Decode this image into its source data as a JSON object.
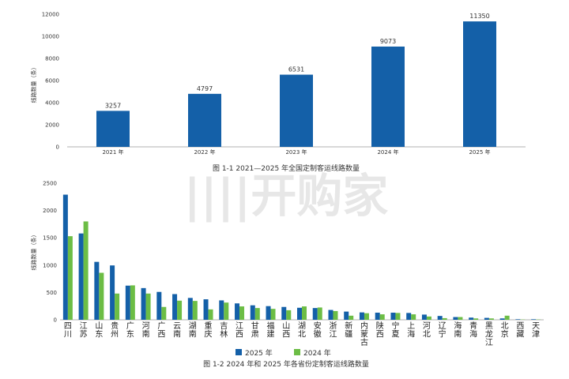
{
  "colors": {
    "series2025": "#1460a8",
    "series2024": "#6cbd45",
    "axis": "#999999"
  },
  "watermark": "||||开购家",
  "chart_data": [
    {
      "type": "bar",
      "caption": "图 1-1  2021—2025 年全国定制客运线路数量",
      "ylabel": "线路数量（条）",
      "ylim": [
        0,
        12000
      ],
      "yticks": [
        "0",
        "2000",
        "4000",
        "6000",
        "8000",
        "10000",
        "12000"
      ],
      "categories": [
        "2021 年",
        "2022 年",
        "2023 年",
        "2024 年",
        "2025 年"
      ],
      "values": [
        3257,
        4797,
        6531,
        9073,
        11350
      ],
      "value_labels": [
        "3257",
        "4797",
        "6531",
        "9073",
        "11350"
      ]
    },
    {
      "type": "bar",
      "caption": "图 1-2  2024 年和 2025 年各省份定制客运线路数量",
      "ylabel": "线路数量（条）",
      "ylim": [
        0,
        2500
      ],
      "yticks": [
        "0",
        "500",
        "1000",
        "1500",
        "2000",
        "2500"
      ],
      "legend": {
        "position": "bottom",
        "labels": [
          "2025 年",
          "2024 年"
        ]
      },
      "categories": [
        "四川",
        "江苏",
        "山东",
        "贵州",
        "广东",
        "河南",
        "广西",
        "云南",
        "湖南",
        "重庆",
        "吉林",
        "江西",
        "甘肃",
        "福建",
        "山西",
        "湖北",
        "安徽",
        "浙江",
        "新疆",
        "内蒙古",
        "陕西",
        "宁夏",
        "上海",
        "河北",
        "辽宁",
        "海南",
        "青海",
        "黑龙江",
        "北京",
        "西藏",
        "天津"
      ],
      "series": [
        {
          "name": "2025 年",
          "values": [
            2290,
            1580,
            1060,
            995,
            625,
            580,
            510,
            470,
            400,
            375,
            355,
            300,
            265,
            250,
            235,
            220,
            215,
            180,
            150,
            135,
            130,
            130,
            125,
            95,
            70,
            50,
            40,
            35,
            25,
            10,
            10
          ]
        },
        {
          "name": "2024 年",
          "values": [
            1530,
            1800,
            860,
            480,
            630,
            480,
            235,
            350,
            345,
            190,
            315,
            245,
            215,
            200,
            175,
            245,
            225,
            160,
            75,
            120,
            100,
            125,
            100,
            60,
            30,
            50,
            25,
            25,
            75,
            5,
            5
          ]
        }
      ]
    }
  ]
}
